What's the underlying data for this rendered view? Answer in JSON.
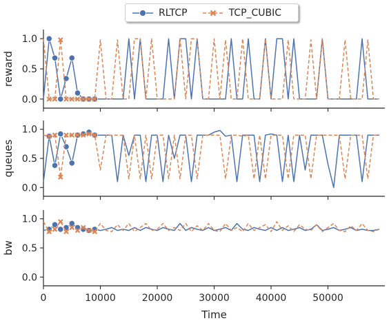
{
  "chart_data": {
    "type": "line",
    "xlabel": "Time",
    "xlim": [
      0,
      60000
    ],
    "x_ticks": [
      0,
      10000,
      20000,
      30000,
      40000,
      50000
    ],
    "x_tick_labels": [
      "0",
      "10000",
      "20000",
      "30000",
      "40000",
      "50000"
    ],
    "legend": {
      "placement": "top-center"
    },
    "series_styles": [
      {
        "name": "RLTCP",
        "color": "#4c72b0",
        "linestyle": "solid",
        "marker": "circle"
      },
      {
        "name": "TCP_CUBIC",
        "color": "#dd8452",
        "linestyle": "dashed",
        "marker": "x"
      }
    ],
    "panels": [
      {
        "ylabel": "reward",
        "ylim": [
          -0.15,
          1.15
        ],
        "y_ticks": [
          0.0,
          0.5,
          1.0
        ],
        "y_tick_labels": [
          "0.0",
          "0.5",
          "1.0"
        ],
        "series": [
          {
            "name": "RLTCP",
            "x": [
              0,
              1000,
              2000,
              3000,
              4000,
              5000,
              6000,
              7000,
              8000,
              9000,
              10000,
              11000,
              12000,
              13000,
              14000,
              15000,
              16000,
              17000,
              18000,
              19000,
              20000,
              21000,
              22000,
              23000,
              24000,
              25000,
              26000,
              27000,
              28000,
              29000,
              30000,
              31000,
              32000,
              33000,
              34000,
              35000,
              36000,
              37000,
              38000,
              39000,
              40000,
              41000,
              42000,
              43000,
              44000,
              45000,
              46000,
              47000,
              48000,
              49000,
              50000,
              51000,
              52000,
              53000,
              54000,
              55000,
              56000,
              57000,
              58000,
              59000
            ],
            "y": [
              0.0,
              1.0,
              0.68,
              0.0,
              0.34,
              0.68,
              0.1,
              0.0,
              0.0,
              0.0,
              0.0,
              0.0,
              0.0,
              0.0,
              0.0,
              1.0,
              0.0,
              1.0,
              0.0,
              0.0,
              0.0,
              0.0,
              1.0,
              0.0,
              1.0,
              1.0,
              0.0,
              1.0,
              0.0,
              0.0,
              0.0,
              0.0,
              0.0,
              1.0,
              0.0,
              0.0,
              1.0,
              0.0,
              0.0,
              1.0,
              0.0,
              1.0,
              1.0,
              0.0,
              1.0,
              0.0,
              0.0,
              0.0,
              0.0,
              1.0,
              0.0,
              0.0,
              0.0,
              0.0,
              0.0,
              0.0,
              1.0,
              0.0,
              0.0,
              0.0
            ]
          },
          {
            "name": "TCP_CUBIC",
            "x": [
              0,
              1000,
              2000,
              3000,
              4000,
              5000,
              6000,
              7000,
              8000,
              9000,
              10000,
              11000,
              12000,
              13000,
              14000,
              15000,
              16000,
              17000,
              18000,
              19000,
              20000,
              21000,
              22000,
              23000,
              24000,
              25000,
              26000,
              27000,
              28000,
              29000,
              30000,
              31000,
              32000,
              33000,
              34000,
              35000,
              36000,
              37000,
              38000,
              39000,
              40000,
              41000,
              42000,
              43000,
              44000,
              45000,
              46000,
              47000,
              48000,
              49000,
              50000,
              51000,
              52000,
              53000,
              54000,
              55000,
              56000,
              57000,
              58000,
              59000
            ],
            "y": [
              1.0,
              0.0,
              0.0,
              0.98,
              0.0,
              0.0,
              0.0,
              0.0,
              0.0,
              0.0,
              0.98,
              0.0,
              0.0,
              0.98,
              0.0,
              0.0,
              1.0,
              1.0,
              0.0,
              1.0,
              0.0,
              0.0,
              0.0,
              0.0,
              1.0,
              0.0,
              1.0,
              1.0,
              0.0,
              0.0,
              1.0,
              0.0,
              0.98,
              0.0,
              0.0,
              1.0,
              0.0,
              0.0,
              0.0,
              1.0,
              0.0,
              0.0,
              0.0,
              0.98,
              0.0,
              0.0,
              0.0,
              0.98,
              0.0,
              1.0,
              0.0,
              0.0,
              0.0,
              0.98,
              0.0,
              0.0,
              0.0,
              0.98,
              0.0,
              0.0
            ]
          }
        ]
      },
      {
        "ylabel": "queues",
        "ylim": [
          -0.15,
          1.15
        ],
        "y_ticks": [
          0.0,
          0.5,
          1.0
        ],
        "y_tick_labels": [
          "0.0",
          "0.5",
          "1.0"
        ],
        "series": [
          {
            "name": "RLTCP",
            "x": [
              0,
              1000,
              2000,
              3000,
              4000,
              5000,
              6000,
              7000,
              8000,
              9000,
              10000,
              11000,
              12000,
              13000,
              14000,
              15000,
              16000,
              17000,
              18000,
              19000,
              20000,
              21000,
              22000,
              23000,
              24000,
              25000,
              26000,
              27000,
              28000,
              29000,
              30000,
              31000,
              32000,
              33000,
              34000,
              35000,
              36000,
              37000,
              38000,
              39000,
              40000,
              41000,
              42000,
              43000,
              44000,
              45000,
              46000,
              47000,
              48000,
              49000,
              50000,
              51000,
              52000,
              53000,
              54000,
              55000,
              56000,
              57000,
              58000,
              59000
            ],
            "y": [
              0.1,
              0.88,
              0.38,
              0.92,
              0.7,
              0.42,
              0.9,
              0.92,
              0.95,
              0.9,
              0.9,
              0.9,
              0.9,
              0.1,
              0.9,
              0.55,
              0.9,
              0.9,
              0.1,
              0.9,
              0.9,
              0.1,
              0.9,
              0.5,
              0.9,
              0.9,
              0.1,
              0.9,
              0.9,
              0.9,
              0.95,
              0.98,
              0.88,
              0.9,
              0.1,
              0.9,
              0.9,
              0.9,
              0.1,
              0.9,
              0.92,
              0.9,
              0.1,
              0.9,
              0.1,
              0.9,
              0.3,
              0.9,
              0.9,
              0.9,
              0.4,
              0.0,
              0.9,
              0.9,
              0.9,
              0.9,
              0.1,
              0.9,
              0.9,
              0.9
            ]
          },
          {
            "name": "TCP_CUBIC",
            "x": [
              0,
              1000,
              2000,
              3000,
              4000,
              5000,
              6000,
              7000,
              8000,
              9000,
              10000,
              11000,
              12000,
              13000,
              14000,
              15000,
              16000,
              17000,
              18000,
              19000,
              20000,
              21000,
              22000,
              23000,
              24000,
              25000,
              26000,
              27000,
              28000,
              29000,
              30000,
              31000,
              32000,
              33000,
              34000,
              35000,
              36000,
              37000,
              38000,
              39000,
              40000,
              41000,
              42000,
              43000,
              44000,
              45000,
              46000,
              47000,
              48000,
              49000,
              50000,
              51000,
              52000,
              53000,
              54000,
              55000,
              56000,
              57000,
              58000,
              59000
            ],
            "y": [
              0.9,
              0.88,
              0.9,
              0.18,
              0.9,
              0.9,
              0.9,
              0.9,
              0.92,
              0.9,
              0.3,
              0.9,
              0.9,
              0.9,
              0.9,
              0.15,
              0.9,
              0.15,
              0.9,
              0.15,
              0.9,
              0.9,
              0.15,
              0.9,
              0.15,
              0.9,
              0.9,
              0.15,
              0.9,
              0.9,
              0.9,
              0.9,
              0.15,
              0.9,
              0.9,
              0.88,
              0.9,
              0.15,
              0.9,
              0.15,
              0.9,
              0.9,
              0.9,
              0.15,
              0.9,
              0.9,
              0.9,
              0.15,
              0.9,
              0.9,
              0.9,
              0.9,
              0.9,
              0.15,
              0.9,
              0.9,
              0.9,
              0.15,
              0.9,
              0.9
            ]
          }
        ]
      },
      {
        "ylabel": "bw",
        "ylim": [
          -0.15,
          1.15
        ],
        "y_ticks": [
          0.0,
          0.5,
          1.0
        ],
        "y_tick_labels": [
          "0.0",
          "0.5",
          "1.0"
        ],
        "series": [
          {
            "name": "RLTCP",
            "x": [
              0,
              1000,
              2000,
              3000,
              4000,
              5000,
              6000,
              7000,
              8000,
              9000,
              10000,
              11000,
              12000,
              13000,
              14000,
              15000,
              16000,
              17000,
              18000,
              19000,
              20000,
              21000,
              22000,
              23000,
              24000,
              25000,
              26000,
              27000,
              28000,
              29000,
              30000,
              31000,
              32000,
              33000,
              34000,
              35000,
              36000,
              37000,
              38000,
              39000,
              40000,
              41000,
              42000,
              43000,
              44000,
              45000,
              46000,
              47000,
              48000,
              49000,
              50000,
              51000,
              52000,
              53000,
              54000,
              55000,
              56000,
              57000,
              58000,
              59000
            ],
            "y": [
              0.8,
              0.82,
              0.9,
              0.82,
              0.85,
              0.92,
              0.85,
              0.82,
              0.8,
              0.82,
              0.8,
              0.82,
              0.85,
              0.8,
              0.82,
              0.8,
              0.85,
              0.8,
              0.85,
              0.82,
              0.8,
              0.85,
              0.82,
              0.8,
              0.92,
              0.8,
              0.85,
              0.82,
              0.8,
              0.85,
              0.8,
              0.82,
              0.85,
              0.8,
              0.92,
              0.82,
              0.8,
              0.85,
              0.82,
              0.8,
              0.85,
              0.8,
              0.85,
              0.8,
              0.82,
              0.85,
              0.8,
              0.82,
              0.9,
              0.8,
              0.82,
              0.85,
              0.8,
              0.82,
              0.85,
              0.8,
              0.82,
              0.8,
              0.8,
              0.82
            ]
          },
          {
            "name": "TCP_CUBIC",
            "x": [
              0,
              1000,
              2000,
              3000,
              4000,
              5000,
              6000,
              7000,
              8000,
              9000,
              10000,
              11000,
              12000,
              13000,
              14000,
              15000,
              16000,
              17000,
              18000,
              19000,
              20000,
              21000,
              22000,
              23000,
              24000,
              25000,
              26000,
              27000,
              28000,
              29000,
              30000,
              31000,
              32000,
              33000,
              34000,
              35000,
              36000,
              37000,
              38000,
              39000,
              40000,
              41000,
              42000,
              43000,
              44000,
              45000,
              46000,
              47000,
              48000,
              49000,
              50000,
              51000,
              52000,
              53000,
              54000,
              55000,
              56000,
              57000,
              58000,
              59000
            ],
            "y": [
              0.95,
              0.78,
              0.82,
              0.95,
              0.78,
              0.85,
              0.8,
              0.85,
              0.8,
              0.78,
              0.92,
              0.8,
              0.78,
              0.9,
              0.8,
              0.92,
              0.78,
              0.85,
              0.92,
              0.8,
              0.82,
              0.92,
              0.8,
              0.85,
              0.8,
              0.92,
              0.78,
              0.88,
              0.8,
              0.92,
              0.8,
              0.78,
              0.92,
              0.8,
              0.85,
              0.78,
              0.92,
              0.8,
              0.85,
              0.9,
              0.78,
              0.95,
              0.8,
              0.88,
              0.78,
              0.9,
              0.82,
              0.8,
              0.9,
              0.78,
              0.85,
              0.92,
              0.8,
              0.78,
              0.88,
              0.8,
              0.92,
              0.8,
              0.78,
              0.82
            ]
          }
        ]
      }
    ]
  }
}
